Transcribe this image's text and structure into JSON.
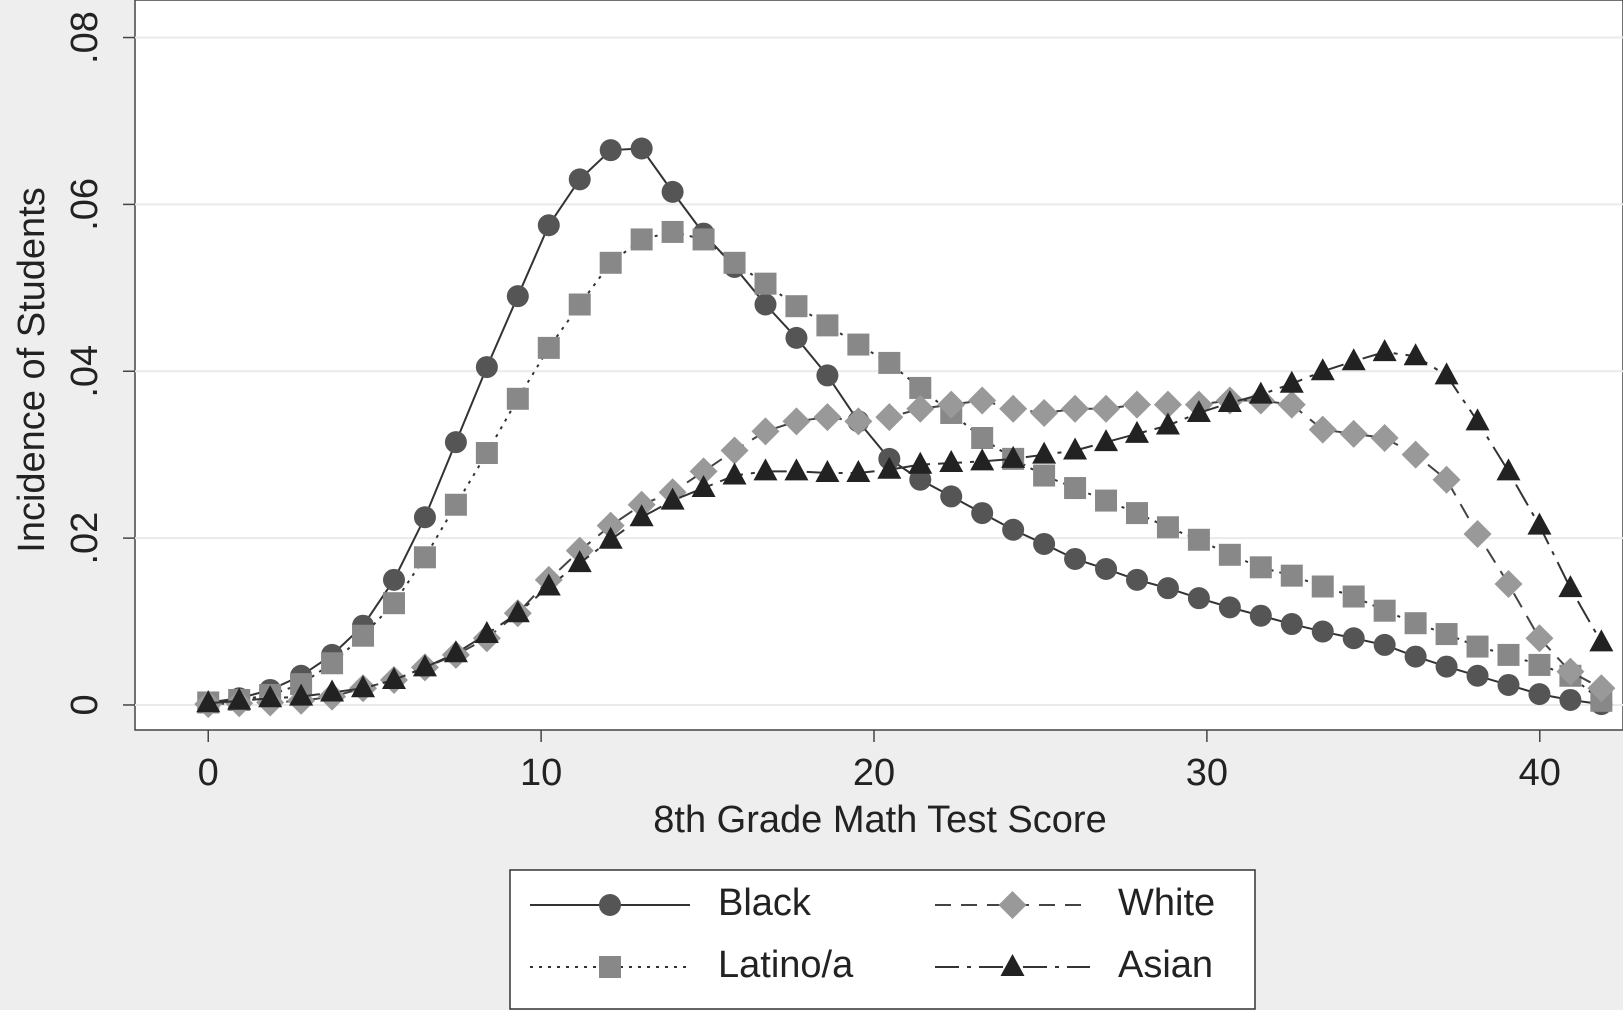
{
  "chart_data": {
    "type": "line",
    "xlabel": "8th Grade Math Test Score",
    "ylabel": "Incidence of Students",
    "x": [
      0,
      0.93,
      1.86,
      2.79,
      3.72,
      4.65,
      5.58,
      6.51,
      7.44,
      8.37,
      9.3,
      10.23,
      11.16,
      12.09,
      13.02,
      13.95,
      14.88,
      15.81,
      16.74,
      17.67,
      18.6,
      19.53,
      20.46,
      21.39,
      22.32,
      23.25,
      24.18,
      25.11,
      26.04,
      26.97,
      27.9,
      28.83,
      29.76,
      30.69,
      31.62,
      32.55,
      33.48,
      34.41,
      35.34,
      36.27,
      37.2,
      38.13,
      39.06,
      39.99,
      40.92,
      41.85
    ],
    "series": [
      {
        "name": "Black",
        "color": "#555555",
        "line_color": "#333333",
        "marker": "circle",
        "dash": "solid",
        "values": [
          0.0003,
          0.0008,
          0.0018,
          0.0035,
          0.006,
          0.0095,
          0.015,
          0.0225,
          0.0315,
          0.0405,
          0.049,
          0.0575,
          0.063,
          0.0665,
          0.0667,
          0.0615,
          0.0565,
          0.0525,
          0.048,
          0.044,
          0.0395,
          0.034,
          0.0295,
          0.027,
          0.025,
          0.023,
          0.021,
          0.0193,
          0.0175,
          0.0163,
          0.015,
          0.014,
          0.0128,
          0.0117,
          0.0107,
          0.0097,
          0.0088,
          0.008,
          0.0072,
          0.0058,
          0.0046,
          0.0035,
          0.0024,
          0.0013,
          0.0006,
          0.0001
        ]
      },
      {
        "name": "Latino/a",
        "color": "#888888",
        "line_color": "#333333",
        "marker": "square",
        "dash": "dotted",
        "values": [
          0.0003,
          0.0006,
          0.0012,
          0.0025,
          0.005,
          0.0083,
          0.0122,
          0.0177,
          0.024,
          0.0302,
          0.0367,
          0.0428,
          0.048,
          0.053,
          0.0558,
          0.0567,
          0.0558,
          0.053,
          0.0505,
          0.0478,
          0.0455,
          0.0432,
          0.041,
          0.038,
          0.035,
          0.032,
          0.0295,
          0.0275,
          0.026,
          0.0245,
          0.023,
          0.0213,
          0.0198,
          0.018,
          0.0165,
          0.0155,
          0.0142,
          0.013,
          0.0113,
          0.0098,
          0.0085,
          0.007,
          0.006,
          0.0048,
          0.0035,
          0.0005
        ]
      },
      {
        "name": "White",
        "color": "#999999",
        "line_color": "#444444",
        "marker": "diamond",
        "dash": "dashed",
        "values": [
          0.0001,
          0.0002,
          0.0003,
          0.0005,
          0.001,
          0.002,
          0.003,
          0.0045,
          0.006,
          0.008,
          0.011,
          0.015,
          0.0185,
          0.0215,
          0.024,
          0.0255,
          0.028,
          0.0305,
          0.0328,
          0.034,
          0.0345,
          0.034,
          0.0345,
          0.0355,
          0.036,
          0.0365,
          0.0355,
          0.035,
          0.0355,
          0.0355,
          0.036,
          0.036,
          0.036,
          0.0365,
          0.0365,
          0.036,
          0.033,
          0.0325,
          0.032,
          0.03,
          0.027,
          0.0205,
          0.0145,
          0.008,
          0.004,
          0.002
        ]
      },
      {
        "name": "Asian",
        "color": "#222222",
        "line_color": "#333333",
        "marker": "triangle",
        "dash": "dashdot",
        "values": [
          0.0002,
          0.0005,
          0.0008,
          0.001,
          0.0015,
          0.002,
          0.003,
          0.0045,
          0.0062,
          0.0085,
          0.011,
          0.0142,
          0.017,
          0.0198,
          0.0225,
          0.0245,
          0.026,
          0.0275,
          0.028,
          0.028,
          0.0278,
          0.0278,
          0.0282,
          0.0288,
          0.029,
          0.0292,
          0.0295,
          0.03,
          0.0305,
          0.0315,
          0.0325,
          0.0335,
          0.035,
          0.0362,
          0.0372,
          0.0385,
          0.04,
          0.0412,
          0.0423,
          0.0418,
          0.0395,
          0.034,
          0.028,
          0.0215,
          0.014,
          0.0075
        ]
      }
    ],
    "xlim": [
      -2.2,
      42.5
    ],
    "ylim": [
      -0.003,
      0.0845
    ],
    "xticks": [
      0,
      10,
      20,
      30,
      40
    ],
    "yticks": [
      0,
      {
        "value": 0.02,
        "label": ".02"
      },
      {
        "value": 0.04,
        "label": ".04"
      },
      {
        "value": 0.06,
        "label": ".06"
      },
      {
        "value": 0.08,
        "label": ".08"
      }
    ],
    "grid": true,
    "legend": "bottom"
  }
}
